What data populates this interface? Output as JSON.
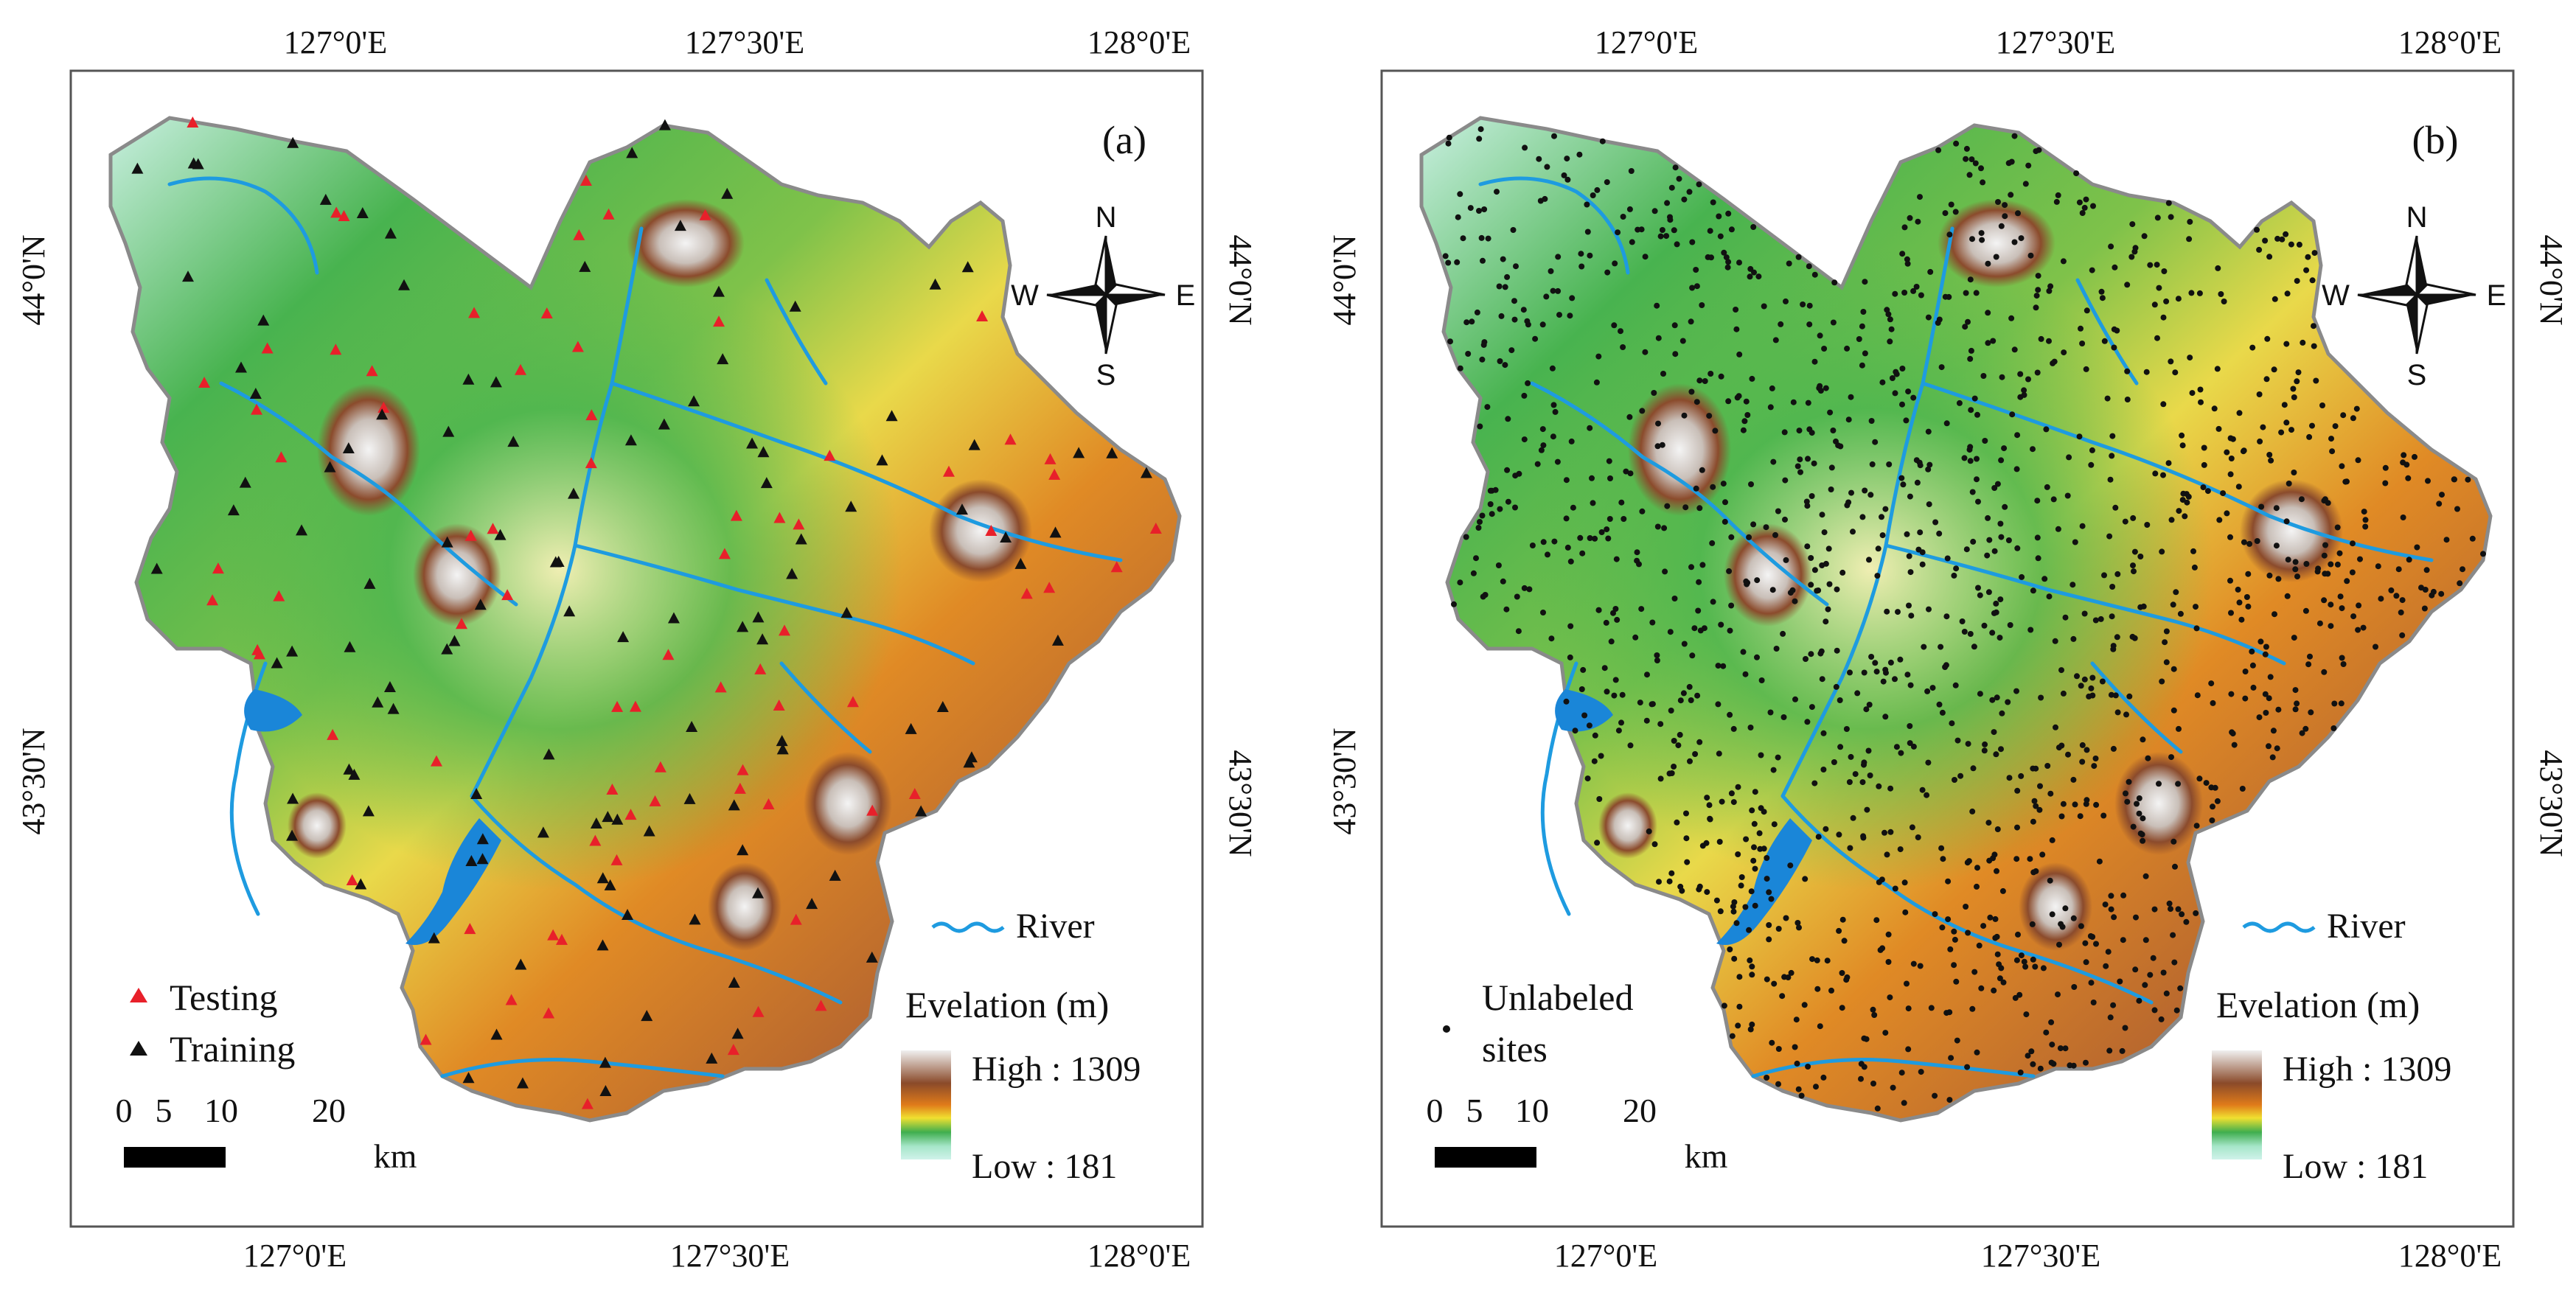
{
  "panels": [
    {
      "id": "a",
      "label": "(a)",
      "top_ticks": [
        "127°0'E",
        "127°30'E",
        "128°0'E"
      ],
      "bottom_ticks": [
        "127°0'E",
        "127°30'E",
        "128°0'E"
      ],
      "left_ticks": [
        "44°0'N",
        "43°30'N"
      ],
      "right_ticks": [
        "44°0'N",
        "43°30'N"
      ],
      "compass": {
        "n": "N",
        "s": "S",
        "e": "E",
        "w": "W"
      },
      "legend_items": [
        {
          "text": "Testing",
          "symbol": "red-triangle",
          "color": "#e8202a"
        },
        {
          "text": "Training",
          "symbol": "black-triangle",
          "color": "#111111"
        }
      ],
      "river_label": "River",
      "elevation_title": "Evelation (m)",
      "elevation_high": "High : 1309",
      "elevation_low": "Low : 181",
      "scale_numbers": [
        "0",
        "5",
        "10",
        "20"
      ],
      "scale_unit": "km"
    },
    {
      "id": "b",
      "label": "(b)",
      "top_ticks": [
        "127°0'E",
        "127°30'E",
        "128°0'E"
      ],
      "bottom_ticks": [
        "127°0'E",
        "127°30'E",
        "128°0'E"
      ],
      "left_ticks": [
        "44°0'N",
        "43°30'N"
      ],
      "right_ticks": [
        "44°0'N",
        "43°30'N"
      ],
      "compass": {
        "n": "N",
        "s": "S",
        "e": "E",
        "w": "W"
      },
      "legend_items": [
        {
          "text": "Unlabeled",
          "symbol": "black-dot",
          "color": "#111111"
        },
        {
          "text": "sites",
          "symbol": "",
          "color": "#111111"
        }
      ],
      "river_label": "River",
      "elevation_title": "Evelation (m)",
      "elevation_high": "High : 1309",
      "elevation_low": "Low : 181",
      "scale_numbers": [
        "0",
        "5",
        "10",
        "20"
      ],
      "scale_unit": "km"
    }
  ],
  "colors": {
    "river": "#1e9be0",
    "lake": "#1a86d8",
    "testing": "#e8202a",
    "training": "#111111",
    "ramp": [
      "#d0f2ea",
      "#a6e6c9",
      "#3fae4e",
      "#f0e030",
      "#e07b1a",
      "#8a4a2a",
      "#f2f2f2"
    ]
  }
}
